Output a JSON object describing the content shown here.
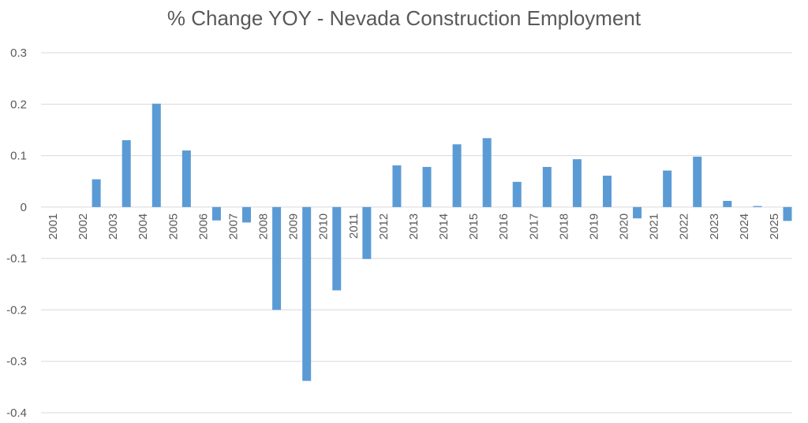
{
  "chart_data": {
    "type": "bar",
    "title": "% Change YOY - Nevada Construction Employment",
    "xlabel": "",
    "ylabel": "",
    "ylim": [
      -0.4,
      0.3
    ],
    "yticks": [
      "0.3",
      "0.2",
      "0.1",
      "0",
      "-0.1",
      "-0.2",
      "-0.3",
      "-0.4"
    ],
    "ytick_values": [
      0.3,
      0.2,
      0.1,
      0,
      -0.1,
      -0.2,
      -0.3,
      -0.4
    ],
    "grid": true,
    "legend": "none",
    "bar_color": "#5b9bd5",
    "categories": [
      "2001",
      "2002",
      "2003",
      "2004",
      "2005",
      "2006",
      "2007",
      "2008",
      "2009",
      "2010",
      "2011",
      "2012",
      "2013",
      "2014",
      "2015",
      "2016",
      "2017",
      "2018",
      "2019",
      "2020",
      "2021",
      "2022",
      "2023",
      "2024",
      "2025"
    ],
    "values": [
      0,
      0.054,
      0.13,
      0.201,
      0.11,
      -0.026,
      -0.03,
      -0.2,
      -0.338,
      -0.162,
      -0.101,
      0.081,
      0.078,
      0.122,
      0.134,
      0.049,
      0.078,
      0.093,
      0.061,
      -0.022,
      0.071,
      0.098,
      0.012,
      0.002,
      -0.027
    ]
  }
}
